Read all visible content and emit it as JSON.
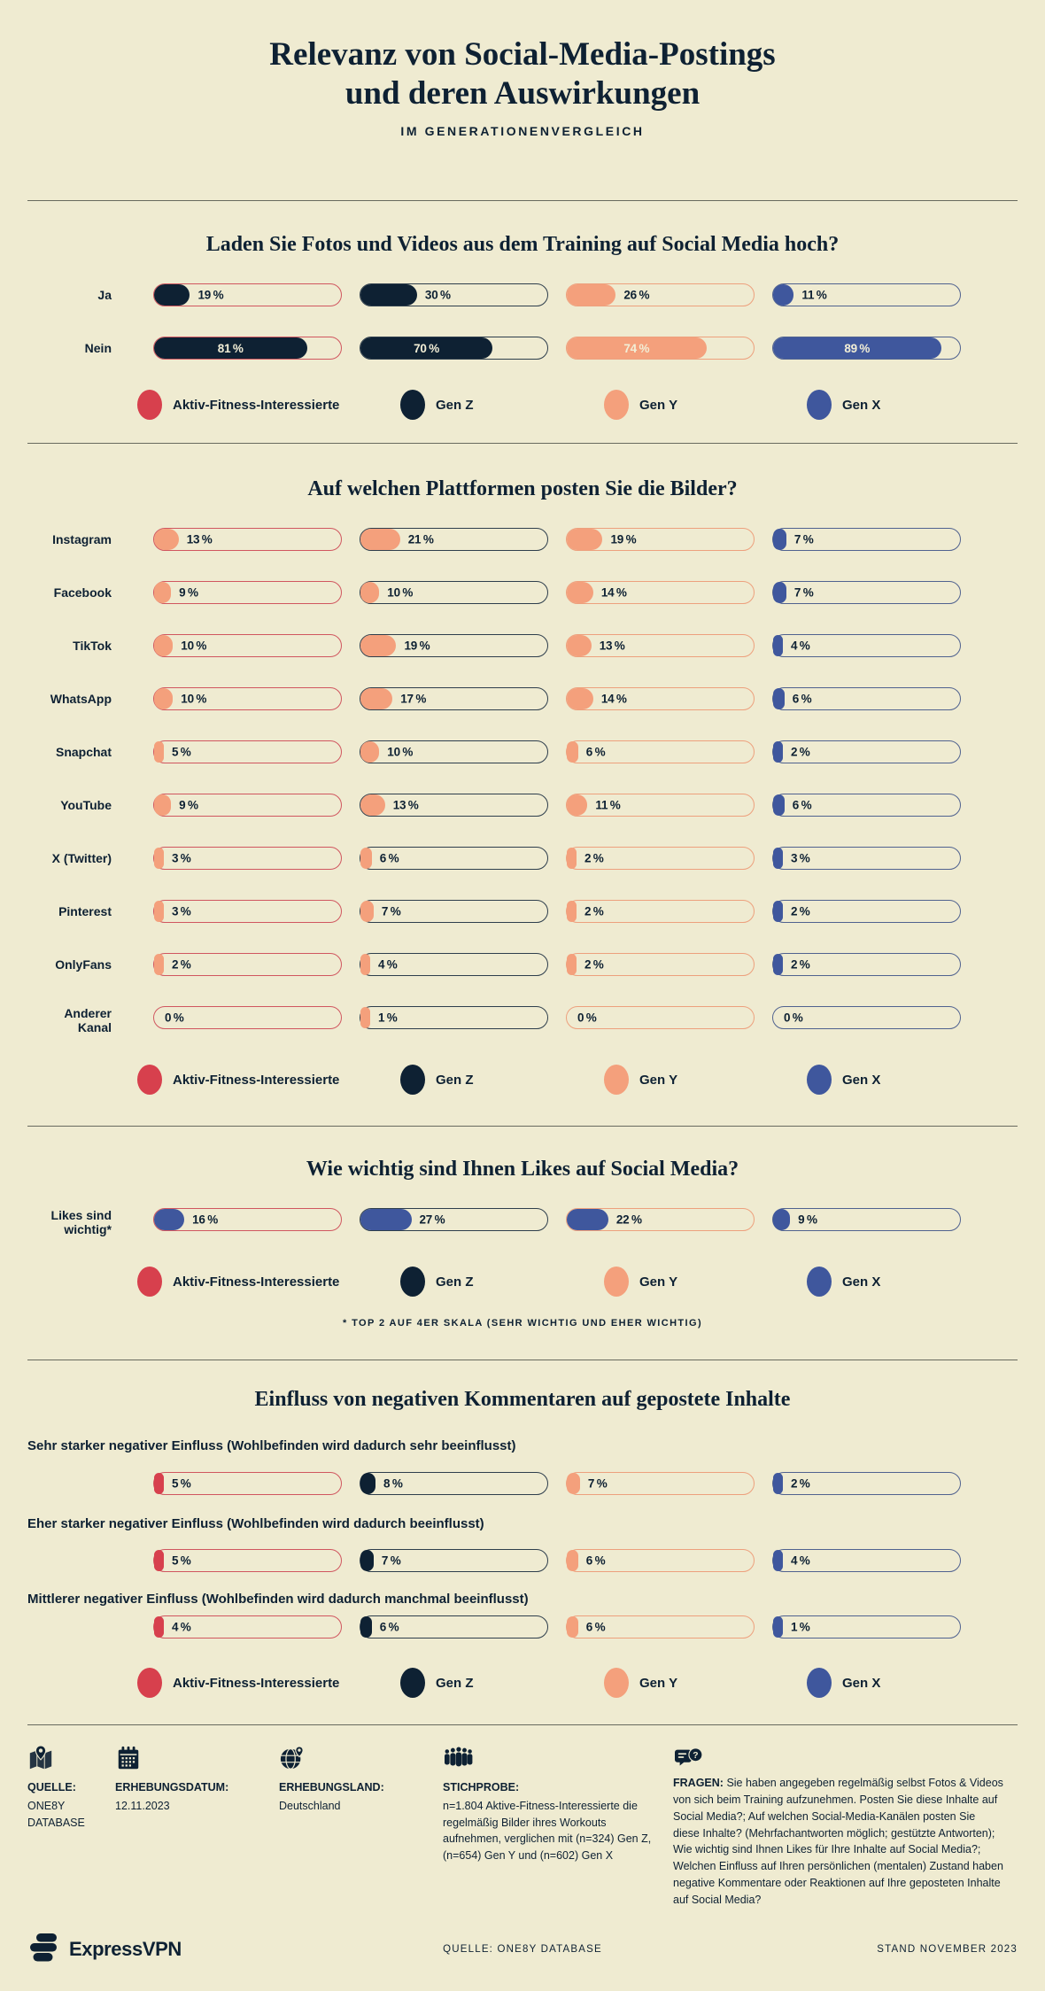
{
  "page": {
    "title_line1": "Relevanz von Social-Media-Postings",
    "title_line2": "und deren Auswirkungen",
    "subtitle": "IM GENERATIONENVERGLEICH"
  },
  "colors": {
    "background": "#efebd1",
    "text": "#0e2133",
    "red": "#d7404d",
    "navy": "#0e2133",
    "peach": "#f4a07c",
    "blue": "#3f579d"
  },
  "legend": {
    "lefts": [
      124,
      421,
      651,
      880
    ],
    "items": [
      {
        "label": "Aktiv-Fitness-Interessierte",
        "color": "#d7404d"
      },
      {
        "label": "Gen Z",
        "color": "#0e2133"
      },
      {
        "label": "Gen Y",
        "color": "#f4a07c"
      },
      {
        "label": "Gen X",
        "color": "#3f579d"
      }
    ]
  },
  "sections": [
    {
      "heading": "Laden Sie Fotos und Videos aus dem Training auf Social Media hoch?",
      "chart": 0
    },
    {
      "heading": "Auf welchen Plattformen posten Sie die Bilder?",
      "chart": 1
    },
    {
      "heading": "Wie wichtig sind Ihnen Likes auf Social Media?",
      "chart": 2,
      "footnote": "* TOP 2 AUF 4ER SKALA (SEHR WICHTIG UND EHER WICHTIG)"
    },
    {
      "heading": "Einfluss von negativen Kommentaren auf gepostete Inhalte",
      "chart": 3,
      "labels_above": true
    }
  ],
  "chart_data": [
    {
      "type": "bar",
      "title": "Laden Sie Fotos und Videos aus dem Training auf Social Media hoch?",
      "unit": "%",
      "xlim": [
        0,
        100
      ],
      "categories": [
        "Ja",
        "Nein"
      ],
      "series": [
        {
          "name": "Aktiv-Fitness-Interessierte",
          "values": [
            19,
            81
          ]
        },
        {
          "name": "Gen Z",
          "values": [
            30,
            70
          ]
        },
        {
          "name": "Gen Y",
          "values": [
            26,
            74
          ]
        },
        {
          "name": "Gen X",
          "values": [
            11,
            89
          ]
        }
      ]
    },
    {
      "type": "bar",
      "title": "Auf welchen Plattformen posten Sie die Bilder?",
      "unit": "%",
      "xlim": [
        0,
        100
      ],
      "categories": [
        "Instagram",
        "Facebook",
        "TikTok",
        "WhatsApp",
        "Snapchat",
        "YouTube",
        "X (Twitter)",
        "Pinterest",
        "OnlyFans",
        "Anderer Kanal"
      ],
      "series": [
        {
          "name": "Aktiv-Fitness-Interessierte",
          "values": [
            13,
            9,
            10,
            10,
            5,
            9,
            3,
            3,
            2,
            0
          ]
        },
        {
          "name": "Gen Z",
          "values": [
            21,
            10,
            19,
            17,
            10,
            13,
            6,
            7,
            4,
            1
          ]
        },
        {
          "name": "Gen Y",
          "values": [
            19,
            14,
            13,
            14,
            6,
            11,
            2,
            2,
            2,
            0
          ]
        },
        {
          "name": "Gen X",
          "values": [
            7,
            7,
            4,
            6,
            2,
            6,
            3,
            2,
            2,
            0
          ]
        }
      ]
    },
    {
      "type": "bar",
      "title": "Wie wichtig sind Ihnen Likes auf Social Media?",
      "unit": "%",
      "xlim": [
        0,
        100
      ],
      "categories": [
        "Likes sind wichtig*"
      ],
      "series": [
        {
          "name": "Aktiv-Fitness-Interessierte",
          "values": [
            16
          ]
        },
        {
          "name": "Gen Z",
          "values": [
            27
          ]
        },
        {
          "name": "Gen Y",
          "values": [
            22
          ]
        },
        {
          "name": "Gen X",
          "values": [
            9
          ]
        }
      ]
    },
    {
      "type": "bar",
      "title": "Einfluss von negativen Kommentaren auf gepostete Inhalte",
      "unit": "%",
      "xlim": [
        0,
        100
      ],
      "categories": [
        "Sehr starker negativer Einfluss (Wohlbefinden wird dadurch sehr beeinflusst)",
        "Eher starker negativer Einfluss (Wohlbefinden wird dadurch beeinflusst)",
        "Mittlerer negativer Einfluss (Wohlbefinden wird dadurch manchmal beeinflusst)"
      ],
      "series": [
        {
          "name": "Aktiv-Fitness-Interessierte",
          "values": [
            5,
            5,
            4
          ]
        },
        {
          "name": "Gen Z",
          "values": [
            8,
            7,
            6
          ]
        },
        {
          "name": "Gen Y",
          "values": [
            7,
            6,
            6
          ]
        },
        {
          "name": "Gen X",
          "values": [
            2,
            4,
            1
          ]
        }
      ]
    }
  ],
  "footer": {
    "cols": [
      {
        "icon": "map-pin-icon",
        "label": "QUELLE:",
        "text": "ONE8Y DATABASE"
      },
      {
        "icon": "calendar-icon",
        "label": "ERHEBUNGSDATUM:",
        "text": "12.11.2023"
      },
      {
        "icon": "globe-icon",
        "label": "ERHEBUNGSLAND:",
        "text": "Deutschland"
      },
      {
        "icon": "people-icon",
        "label": "STICHPROBE:",
        "text": "n=1.804 Aktive-Fitness-Interessierte die regelmäßig Bilder ihres Workouts aufnehmen, verglichen mit (n=324) Gen Z, (n=654) Gen Y und (n=602) Gen X"
      },
      {
        "icon": "chat-question-icon",
        "label": "FRAGEN:",
        "text": "Sie haben angegeben regelmäßig selbst Fotos & Videos von sich beim Training aufzunehmen. Posten Sie diese Inhalte auf Social Media?; Auf welchen Social-Media-Kanälen posten Sie diese Inhalte? (Mehrfachantworten möglich; gestützte Antworten); Wie wichtig sind Ihnen Likes für Ihre Inhalte auf Social Media?; Welchen Einfluss auf Ihren persönlichen (mentalen) Zustand haben negative Kommentare oder Reaktionen auf Ihre geposteten Inhalte auf Social Media?"
      }
    ]
  },
  "bottom_bar": {
    "brand": "ExpressVPN",
    "source": "QUELLE: ONE8Y DATABASE",
    "stand": "STAND NOVEMBER 2023"
  }
}
